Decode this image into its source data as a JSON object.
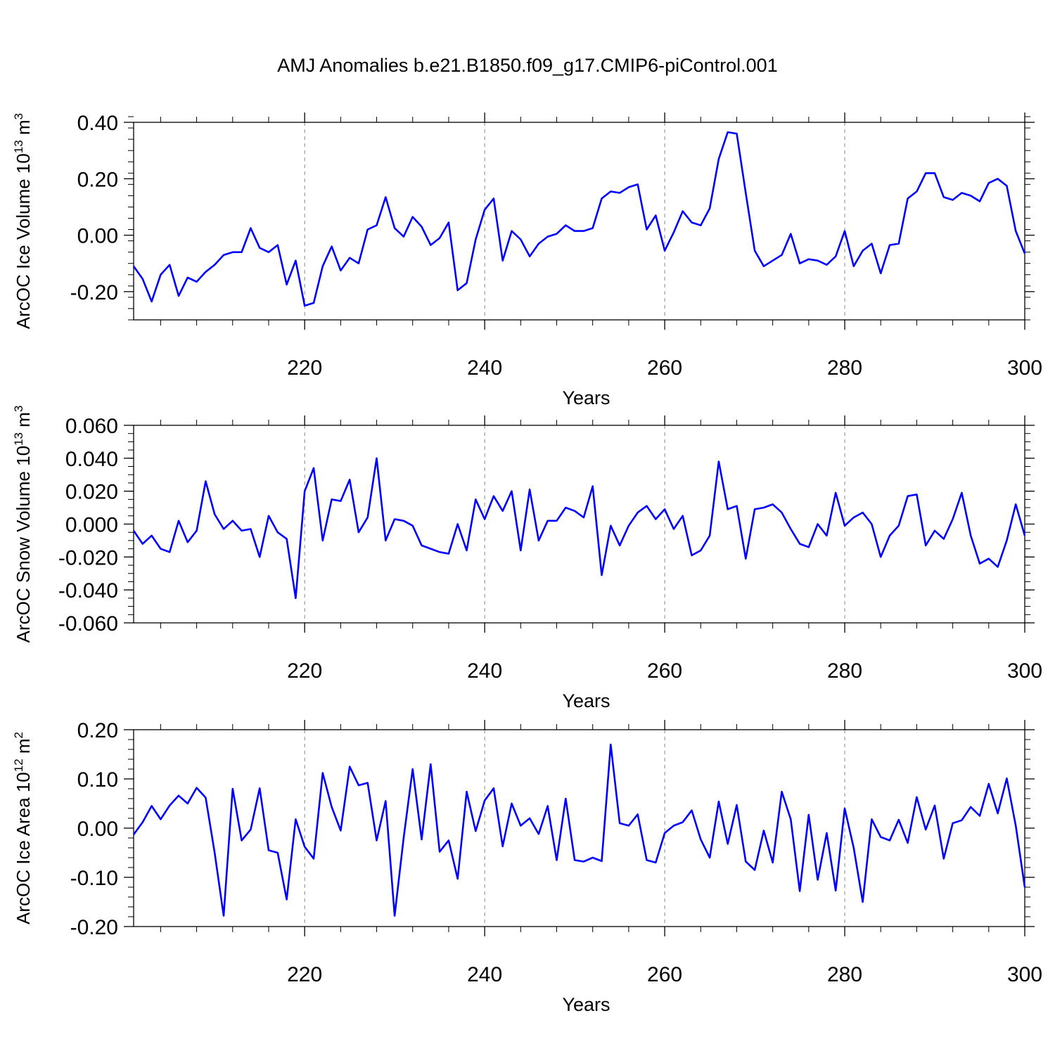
{
  "figure": {
    "title": "AMJ Anomalies b.e21.B1850.f09_g17.CMIP6-piControl.001",
    "line_color": "#0000ff"
  },
  "chart_data": [
    {
      "type": "line",
      "ylabel": "ArcOC Ice Volume 10",
      "ylabel_exp": "13",
      "ylabel_unit": " m",
      "ylabel_unit_exp": "3",
      "xlabel": "Years",
      "xlim": [
        201,
        300
      ],
      "ylim": [
        -0.3,
        0.4
      ],
      "yticks": [
        0.4,
        0.2,
        0.0,
        -0.2
      ],
      "ytick_labels": [
        "0.40",
        "0.20",
        "0.00",
        "-0.20"
      ],
      "yminor_step": 0.04,
      "xticks": [
        220,
        240,
        260,
        280,
        300
      ],
      "xtick_labels": [
        "220",
        "240",
        "260",
        "280",
        "300"
      ],
      "x_start": 201,
      "values": [
        -0.11,
        -0.155,
        -0.235,
        -0.14,
        -0.105,
        -0.215,
        -0.15,
        -0.165,
        -0.13,
        -0.105,
        -0.07,
        -0.06,
        -0.06,
        0.025,
        -0.045,
        -0.06,
        -0.035,
        -0.175,
        -0.09,
        -0.25,
        -0.24,
        -0.11,
        -0.04,
        -0.125,
        -0.08,
        -0.1,
        0.02,
        0.035,
        0.135,
        0.025,
        -0.005,
        0.065,
        0.03,
        -0.035,
        -0.01,
        0.045,
        -0.195,
        -0.17,
        -0.015,
        0.09,
        0.13,
        -0.09,
        0.015,
        -0.015,
        -0.075,
        -0.03,
        -0.005,
        0.005,
        0.035,
        0.015,
        0.015,
        0.025,
        0.13,
        0.155,
        0.15,
        0.17,
        0.18,
        0.02,
        0.07,
        -0.055,
        0.01,
        0.085,
        0.045,
        0.035,
        0.095,
        0.27,
        0.365,
        0.36,
        0.15,
        -0.055,
        -0.11,
        -0.09,
        -0.07,
        0.005,
        -0.1,
        -0.085,
        -0.09,
        -0.105,
        -0.075,
        0.015,
        -0.11,
        -0.055,
        -0.03,
        -0.135,
        -0.035,
        -0.03,
        0.13,
        0.155,
        0.22,
        0.22,
        0.135,
        0.125,
        0.15,
        0.14,
        0.12,
        0.185,
        0.2,
        0.175,
        0.015,
        -0.065
      ]
    },
    {
      "type": "line",
      "ylabel": "ArcOC Snow Volume 10",
      "ylabel_exp": "13",
      "ylabel_unit": " m",
      "ylabel_unit_exp": "3",
      "xlabel": "Years",
      "xlim": [
        201,
        300
      ],
      "ylim": [
        -0.06,
        0.06
      ],
      "yticks": [
        0.06,
        0.04,
        0.02,
        0.0,
        -0.02,
        -0.04,
        -0.06
      ],
      "ytick_labels": [
        "0.060",
        "0.040",
        "0.020",
        "0.000",
        "-0.020",
        "-0.040",
        "-0.060"
      ],
      "yminor_step": 0.005,
      "xticks": [
        220,
        240,
        260,
        280,
        300
      ],
      "xtick_labels": [
        "220",
        "240",
        "260",
        "280",
        "300"
      ],
      "x_start": 201,
      "values": [
        -0.004,
        -0.012,
        -0.007,
        -0.015,
        -0.017,
        0.002,
        -0.011,
        -0.004,
        0.026,
        0.006,
        -0.003,
        0.002,
        -0.004,
        -0.003,
        -0.02,
        0.005,
        -0.005,
        -0.009,
        -0.045,
        0.02,
        0.034,
        -0.01,
        0.015,
        0.014,
        0.027,
        -0.005,
        0.004,
        0.04,
        -0.01,
        0.003,
        0.002,
        -0.001,
        -0.013,
        -0.015,
        -0.017,
        -0.018,
        0.0,
        -0.016,
        0.015,
        0.003,
        0.017,
        0.008,
        0.02,
        -0.016,
        0.021,
        -0.01,
        0.002,
        0.002,
        0.01,
        0.008,
        0.004,
        0.023,
        -0.031,
        -0.001,
        -0.013,
        -0.001,
        0.007,
        0.011,
        0.003,
        0.009,
        -0.003,
        0.005,
        -0.019,
        -0.016,
        -0.007,
        0.038,
        0.009,
        0.011,
        -0.021,
        0.009,
        0.01,
        0.012,
        0.007,
        -0.003,
        -0.012,
        -0.014,
        0.0,
        -0.007,
        0.019,
        -0.001,
        0.004,
        0.007,
        0.0,
        -0.02,
        -0.007,
        -0.001,
        0.017,
        0.018,
        -0.013,
        -0.004,
        -0.009,
        0.003,
        0.019,
        -0.007,
        -0.024,
        -0.021,
        -0.026,
        -0.01,
        0.012,
        -0.007
      ]
    },
    {
      "type": "line",
      "ylabel": "ArcOC Ice Area 10",
      "ylabel_exp": "12",
      "ylabel_unit": " m",
      "ylabel_unit_exp": "2",
      "xlabel": "Years",
      "xlim": [
        201,
        300
      ],
      "ylim": [
        -0.2,
        0.2
      ],
      "yticks": [
        0.2,
        0.1,
        0.0,
        -0.1,
        -0.2
      ],
      "ytick_labels": [
        "0.20",
        "0.10",
        "0.00",
        "-0.10",
        "-0.20"
      ],
      "yminor_step": 0.02,
      "xticks": [
        220,
        240,
        260,
        280,
        300
      ],
      "xtick_labels": [
        "220",
        "240",
        "260",
        "280",
        "300"
      ],
      "x_start": 201,
      "values": [
        -0.013,
        0.012,
        0.045,
        0.018,
        0.046,
        0.066,
        0.05,
        0.082,
        0.062,
        -0.05,
        -0.178,
        0.08,
        -0.025,
        -0.003,
        0.081,
        -0.045,
        -0.05,
        -0.145,
        0.018,
        -0.038,
        -0.062,
        0.112,
        0.043,
        -0.005,
        0.125,
        0.087,
        0.092,
        -0.025,
        0.055,
        -0.178,
        -0.02,
        0.12,
        -0.023,
        0.13,
        -0.048,
        -0.025,
        -0.103,
        0.074,
        -0.006,
        0.056,
        0.081,
        -0.037,
        0.05,
        0.005,
        0.02,
        -0.012,
        0.045,
        -0.065,
        0.06,
        -0.065,
        -0.068,
        -0.06,
        -0.067,
        0.17,
        0.01,
        0.005,
        0.028,
        -0.065,
        -0.07,
        -0.01,
        0.005,
        0.012,
        0.036,
        -0.023,
        -0.06,
        0.054,
        -0.032,
        0.047,
        -0.068,
        -0.085,
        -0.005,
        -0.07,
        0.074,
        0.018,
        -0.128,
        0.027,
        -0.105,
        -0.01,
        -0.127,
        0.04,
        -0.04,
        -0.15,
        0.018,
        -0.018,
        -0.025,
        0.017,
        -0.03,
        0.063,
        -0.003,
        0.046,
        -0.062,
        0.01,
        0.016,
        0.043,
        0.025,
        0.09,
        0.03,
        0.101,
        0.005,
        -0.12
      ]
    }
  ]
}
